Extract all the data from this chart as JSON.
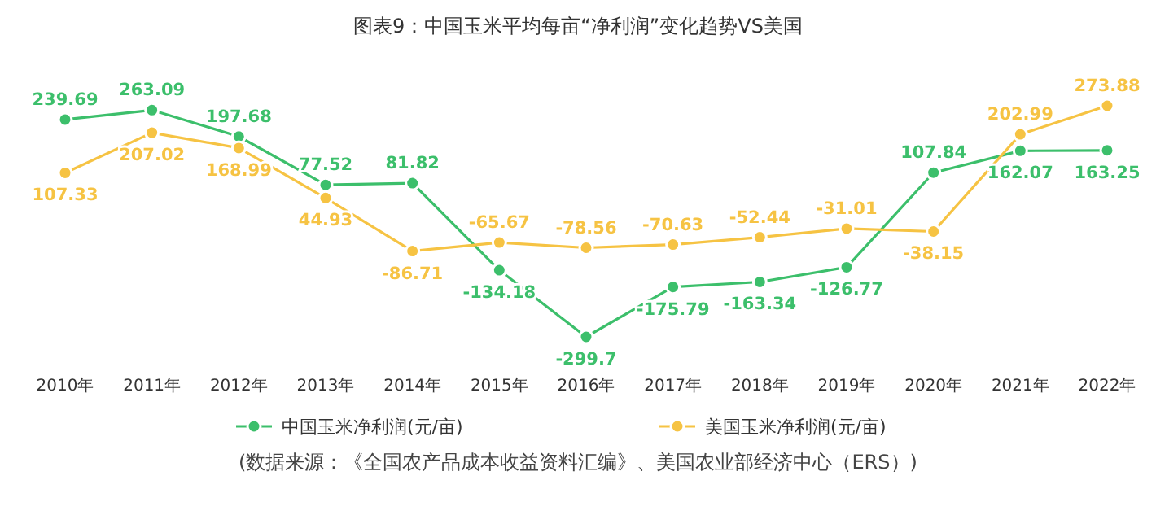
{
  "chart_data": {
    "type": "line",
    "title": "图表9：中国玉米平均每亩“净利润”变化趋势VS美国",
    "categories": [
      "2010年",
      "2011年",
      "2012年",
      "2013年",
      "2014年",
      "2015年",
      "2016年",
      "2017年",
      "2018年",
      "2019年",
      "2020年",
      "2021年",
      "2022年"
    ],
    "series": [
      {
        "name": "中国玉米净利润(元/亩)",
        "color": "#3cbf6b",
        "values": [
          239.69,
          263.09,
          197.68,
          77.52,
          81.82,
          -134.18,
          -299.7,
          -175.79,
          -163.34,
          -126.77,
          107.84,
          162.07,
          163.25
        ]
      },
      {
        "name": "美国玉米净利润(元/亩)",
        "color": "#f6c343",
        "values": [
          107.33,
          207.02,
          168.99,
          44.93,
          -86.71,
          -65.67,
          -78.56,
          -70.63,
          -52.44,
          -31.01,
          -38.15,
          202.99,
          273.88
        ]
      }
    ],
    "data_labels": true,
    "marker": "circle",
    "legend": "bottom",
    "grid": false,
    "annotations": [
      "(数据来源：《全国农产品成本收益资料汇编》、美国农业部经济中心（ERS）)"
    ]
  }
}
